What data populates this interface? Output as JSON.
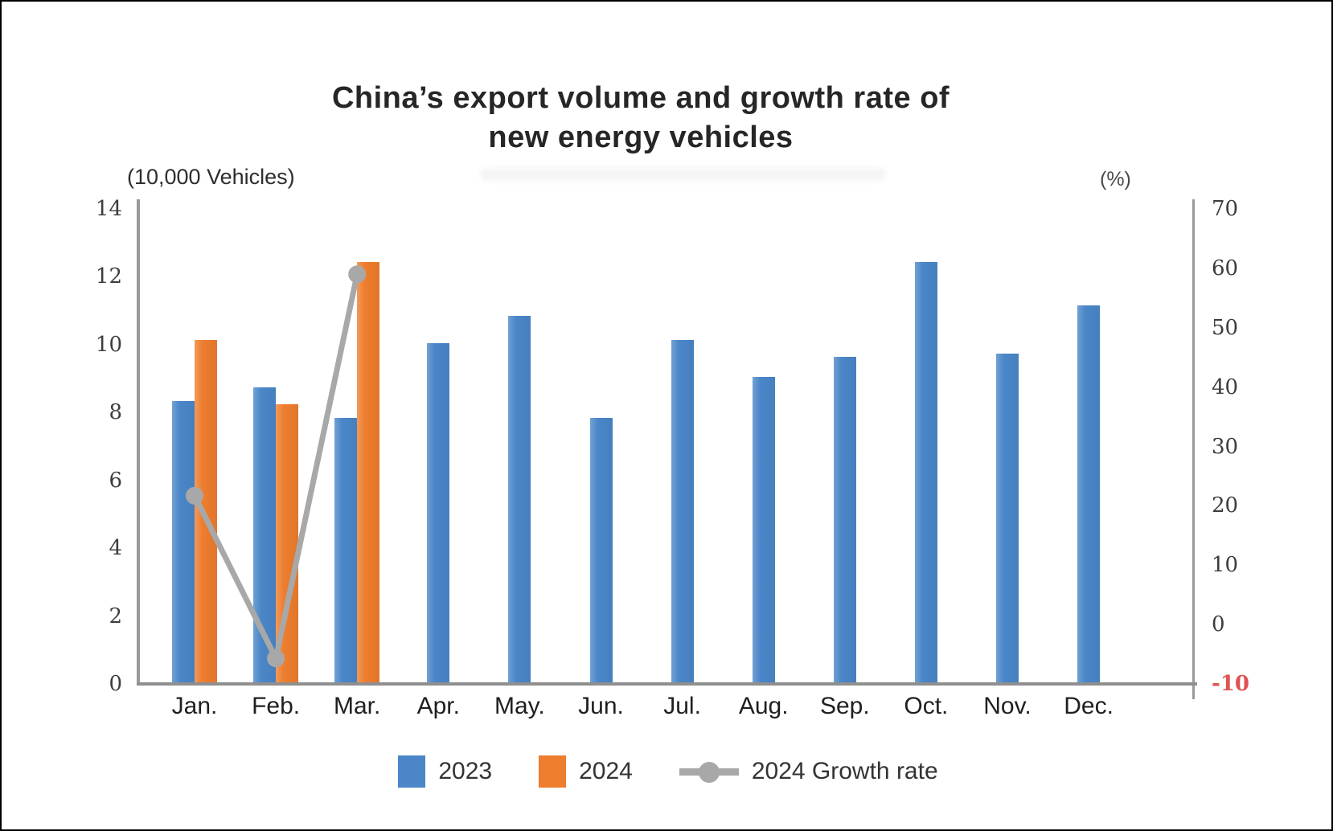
{
  "title": {
    "line1": "China’s export volume and growth rate of",
    "line2": "new energy vehicles"
  },
  "axes": {
    "left_unit": "(10,000 Vehicles)",
    "right_unit": "(%)"
  },
  "legend": {
    "items": [
      {
        "label": "2023",
        "marker": "bar-swatch",
        "color": "#4a86c8"
      },
      {
        "label": "2024",
        "marker": "bar-swatch",
        "color": "#ee7d2e"
      },
      {
        "label": "2024 Growth rate",
        "marker": "line-dot",
        "color": "#a8a8a8"
      }
    ]
  },
  "chart_data": {
    "type": "bar",
    "subtype": "grouped bars with secondary-axis line",
    "title": "China’s export volume and growth rate of new energy vehicles",
    "categories": [
      "Jan.",
      "Feb.",
      "Mar.",
      "Apr.",
      "May.",
      "Jun.",
      "Jul.",
      "Aug.",
      "Sep.",
      "Oct.",
      "Nov.",
      "Dec."
    ],
    "series": [
      {
        "name": "2023",
        "type": "bar",
        "axis": "left",
        "color": "#4a86c8",
        "values": [
          8.3,
          8.7,
          7.8,
          10.0,
          10.8,
          7.8,
          10.1,
          9.0,
          9.6,
          12.4,
          9.7,
          11.1
        ]
      },
      {
        "name": "2024",
        "type": "bar",
        "axis": "left",
        "color": "#ee7d2e",
        "values": [
          10.1,
          8.2,
          12.4,
          null,
          null,
          null,
          null,
          null,
          null,
          null,
          null,
          null
        ]
      },
      {
        "name": "2024 Growth rate",
        "type": "line",
        "axis": "right",
        "color": "#a8a8a8",
        "values": [
          21.7,
          -5.7,
          59.0,
          null,
          null,
          null,
          null,
          null,
          null,
          null,
          null,
          null
        ]
      }
    ],
    "left_axis": {
      "label": "(10,000 Vehicles)",
      "min": 0,
      "max": 14,
      "step": 2,
      "ticks": [
        0,
        2,
        4,
        6,
        8,
        10,
        12,
        14
      ]
    },
    "right_axis": {
      "label": "(%)",
      "min": -10,
      "max": 70,
      "step": 10,
      "ticks": [
        -10,
        0,
        10,
        20,
        30,
        40,
        50,
        60,
        70
      ],
      "negative_tick_color": "#e05252"
    },
    "grid": false,
    "legend_position": "bottom"
  }
}
